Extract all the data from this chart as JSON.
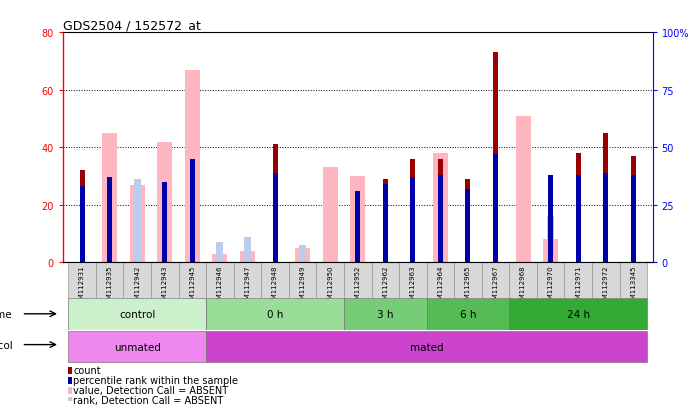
{
  "title": "GDS2504 / 152572_at",
  "samples": [
    "GSM112931",
    "GSM112935",
    "GSM112942",
    "GSM112943",
    "GSM112945",
    "GSM112946",
    "GSM112947",
    "GSM112948",
    "GSM112949",
    "GSM112950",
    "GSM112952",
    "GSM112962",
    "GSM112963",
    "GSM112964",
    "GSM112965",
    "GSM112967",
    "GSM112968",
    "GSM112970",
    "GSM112971",
    "GSM112972",
    "GSM113345"
  ],
  "count_values": [
    32,
    0,
    0,
    0,
    0,
    0,
    0,
    41,
    0,
    0,
    0,
    29,
    36,
    36,
    29,
    73,
    0,
    0,
    38,
    45,
    37
  ],
  "percentile_values": [
    33,
    37,
    0,
    35,
    45,
    0,
    0,
    39,
    0,
    0,
    31,
    34,
    37,
    38,
    32,
    47,
    0,
    38,
    38,
    39,
    38
  ],
  "value_absent": [
    0,
    45,
    27,
    42,
    67,
    3,
    4,
    0,
    5,
    33,
    30,
    0,
    0,
    38,
    0,
    0,
    51,
    8,
    0,
    0,
    0
  ],
  "rank_absent": [
    0,
    0,
    29,
    0,
    0,
    7,
    9,
    0,
    6,
    0,
    0,
    0,
    0,
    0,
    0,
    0,
    0,
    16,
    0,
    0,
    0
  ],
  "left_ylim": [
    0,
    80
  ],
  "right_ylim": [
    0,
    100
  ],
  "left_yticks": [
    0,
    20,
    40,
    60,
    80
  ],
  "right_yticks": [
    0,
    25,
    50,
    75,
    100
  ],
  "right_yticklabels": [
    "0",
    "25",
    "50",
    "75",
    "100%"
  ],
  "time_groups": [
    {
      "label": "control",
      "start": 0,
      "end": 5
    },
    {
      "label": "0 h",
      "start": 5,
      "end": 10
    },
    {
      "label": "3 h",
      "start": 10,
      "end": 13
    },
    {
      "label": "6 h",
      "start": 13,
      "end": 16
    },
    {
      "label": "24 h",
      "start": 16,
      "end": 21
    }
  ],
  "time_colors": [
    "#ccf0cc",
    "#99dd99",
    "#77cc77",
    "#55bb55",
    "#33aa33"
  ],
  "protocol_groups": [
    {
      "label": "unmated",
      "start": 0,
      "end": 5
    },
    {
      "label": "mated",
      "start": 5,
      "end": 21
    }
  ],
  "protocol_colors": [
    "#ee88ee",
    "#cc44cc"
  ],
  "bar_color_dark_red": "#9B0000",
  "bar_color_blue": "#0000AA",
  "bar_color_pink": "#FFB6C1",
  "bar_color_light_blue": "#BBCCEE",
  "legend_items": [
    {
      "color": "#9B0000",
      "label": "count"
    },
    {
      "color": "#0000AA",
      "label": "percentile rank within the sample"
    },
    {
      "color": "#FFB6C1",
      "label": "value, Detection Call = ABSENT"
    },
    {
      "color": "#BBCCEE",
      "label": "rank, Detection Call = ABSENT"
    }
  ]
}
